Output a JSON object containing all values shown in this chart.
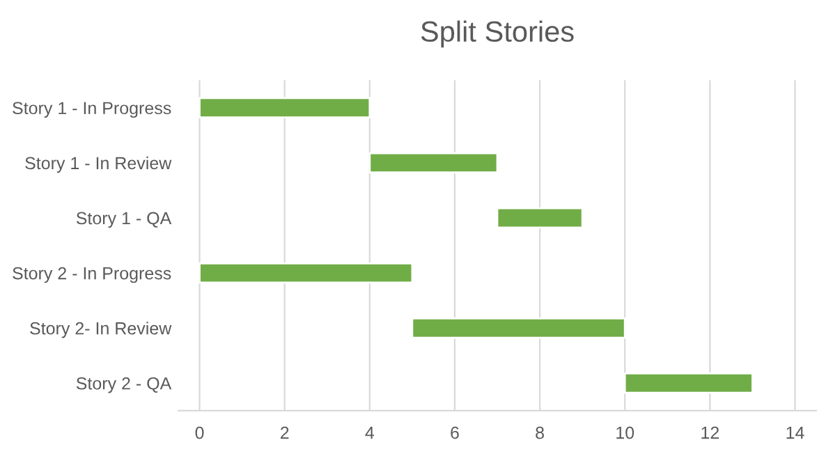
{
  "chart_data": {
    "type": "bar",
    "title": "Split Stories",
    "orientation": "horizontal",
    "categories": [
      "Story 1 - In Progress",
      "Story 1 - In Review",
      "Story 1 - QA",
      "Story 2 - In Progress",
      "Story 2- In Review",
      "Story 2 - QA"
    ],
    "base": [
      0,
      4,
      7,
      0,
      5,
      10
    ],
    "values": [
      4,
      3,
      2,
      5,
      5,
      3
    ],
    "color": "#70ad47",
    "xlim": [
      -0.5,
      14.5
    ],
    "xticks": [
      0,
      2,
      4,
      6,
      8,
      10,
      12,
      14
    ],
    "grid": "x"
  }
}
